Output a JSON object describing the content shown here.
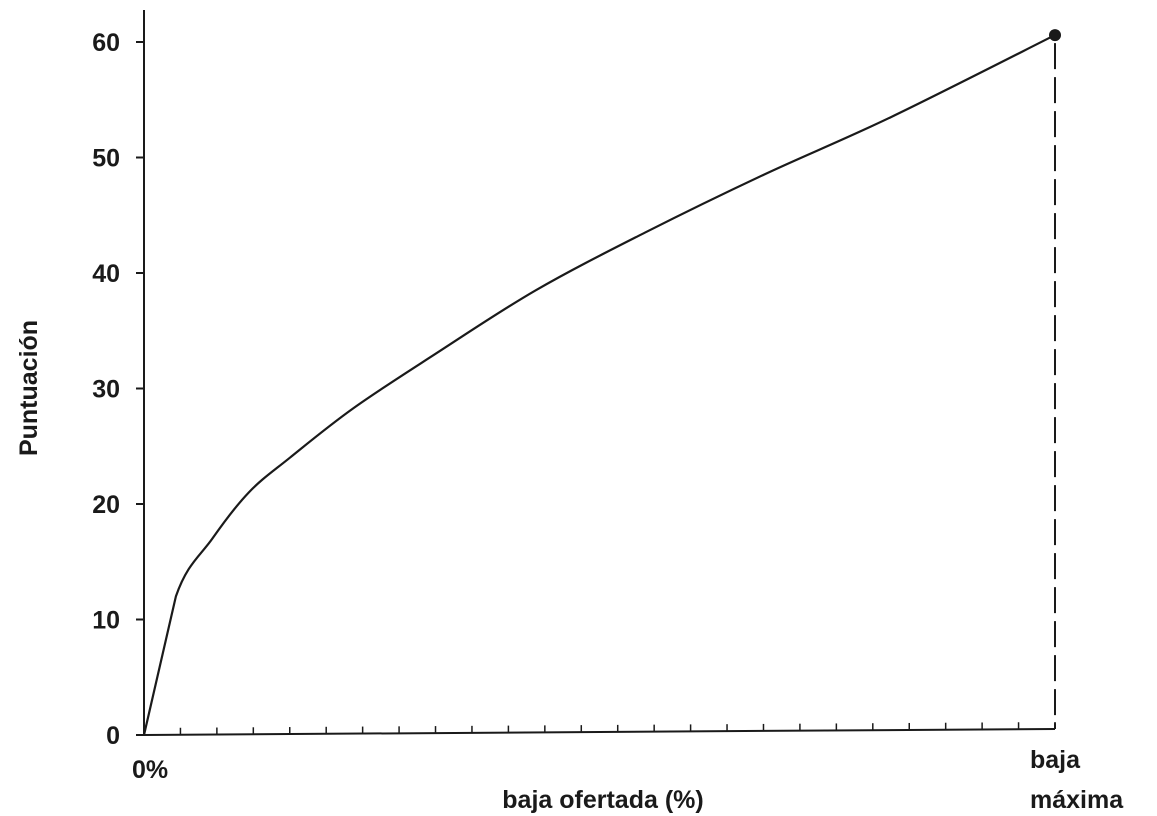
{
  "chart_data": {
    "type": "line",
    "title": "",
    "xlabel": "baja ofertada (%)",
    "ylabel": "Puntuación",
    "x_range_labels": {
      "start": "0%",
      "end_line1": "baja",
      "end_line2": "máxima"
    },
    "x": [
      0,
      0.035,
      0.075,
      0.115,
      0.16,
      0.23,
      0.32,
      0.43,
      0.55,
      0.68,
      0.82,
      1.0
    ],
    "y": [
      0,
      12,
      17,
      21,
      24,
      28.3,
      33,
      38.5,
      43.5,
      48.5,
      53.5,
      60.6
    ],
    "ylim": [
      0,
      60
    ],
    "yticks": [
      0,
      10,
      20,
      30,
      40,
      50,
      60
    ],
    "x_minor_ticks": 25,
    "endpoint_marker": true,
    "endpoint_dropline": "dashed",
    "grid": false,
    "line_color": "#1a1a1a"
  }
}
